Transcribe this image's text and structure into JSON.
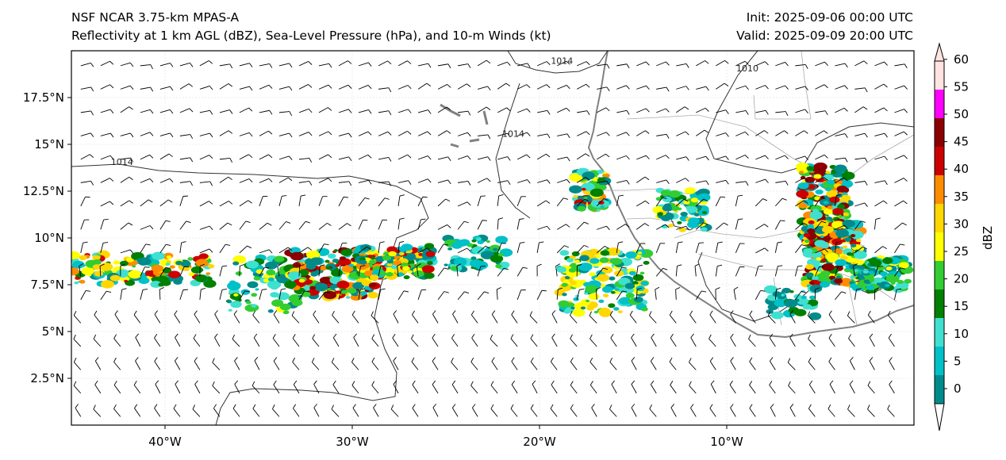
{
  "header": {
    "title_line1": "NSF NCAR 3.75-km MPAS-A",
    "title_line2": "Reflectivity at 1 km AGL (dBZ), Sea-Level Pressure (hPa), and 10-m Winds (kt)",
    "init_label": "Init: 2025-09-06 00:00 UTC",
    "valid_label": "Valid: 2025-09-09 20:00 UTC"
  },
  "map": {
    "lon_range": [
      -45,
      0
    ],
    "lat_range": [
      0,
      20
    ],
    "lon_ticks": [
      {
        "lon": -40,
        "label": "40°W"
      },
      {
        "lon": -30,
        "label": "30°W"
      },
      {
        "lon": -20,
        "label": "20°W"
      },
      {
        "lon": -10,
        "label": "10°W"
      }
    ],
    "lat_ticks": [
      {
        "lat": 2.5,
        "label": "2.5°N"
      },
      {
        "lat": 5,
        "label": "5°N"
      },
      {
        "lat": 7.5,
        "label": "7.5°N"
      },
      {
        "lat": 10,
        "label": "10°N"
      },
      {
        "lat": 12.5,
        "label": "12.5°N"
      },
      {
        "lat": 15,
        "label": "15°N"
      },
      {
        "lat": 17.5,
        "label": "17.5°N"
      }
    ],
    "isobar_labels": [
      {
        "text": "1014",
        "lon": -42.3,
        "lat": 13.9
      },
      {
        "text": "1014",
        "lon": -18.8,
        "lat": 19.3
      },
      {
        "text": "1014",
        "lon": -21.4,
        "lat": 15.4
      },
      {
        "text": "1010",
        "lon": -8.9,
        "lat": 18.9
      }
    ]
  },
  "colorbar": {
    "label": "dBZ",
    "ticks": [
      "0",
      "5",
      "10",
      "15",
      "20",
      "25",
      "30",
      "35",
      "40",
      "45",
      "50",
      "55",
      "60"
    ],
    "colors": [
      "#008b8b",
      "#00c0c8",
      "#40e0d0",
      "#008000",
      "#32cd32",
      "#ffff00",
      "#ffd700",
      "#ff8c00",
      "#cd0000",
      "#8b0000",
      "#ff00ff",
      "#ffe4e1"
    ]
  }
}
